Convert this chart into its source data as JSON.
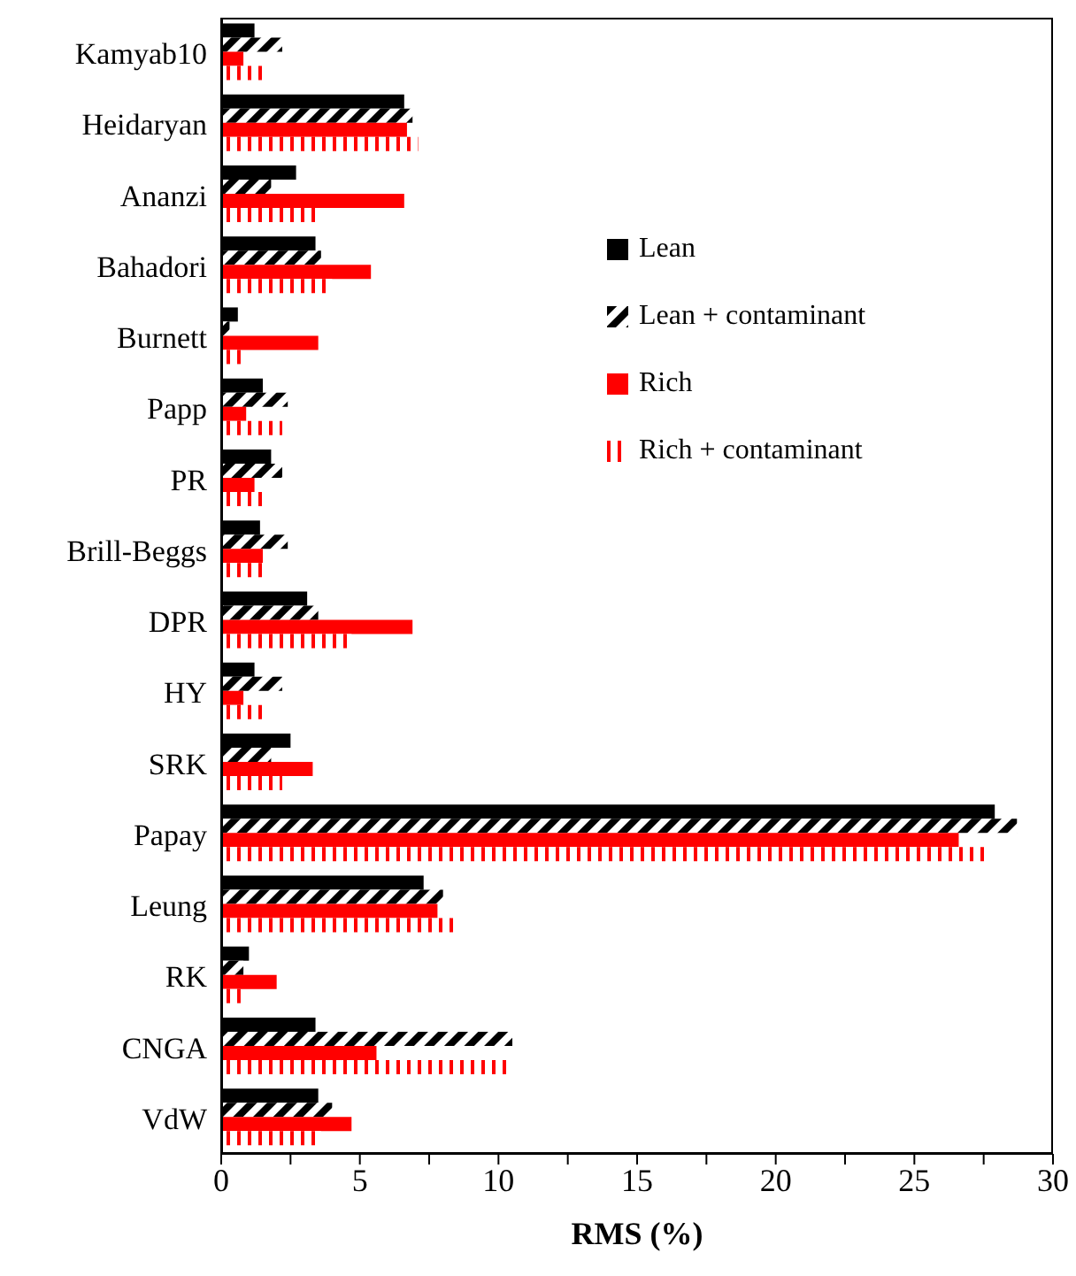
{
  "chart_data": {
    "type": "bar",
    "orientation": "horizontal",
    "xlabel": "RMS (%)",
    "categories": [
      "Kamyab10",
      "Heidaryan",
      "Ananzi",
      "Bahadori",
      "Burnett",
      "Papp",
      "PR",
      "Brill-Beggs",
      "DPR",
      "HY",
      "SRK",
      "Papay",
      "Leung",
      "RK",
      "CNGA",
      "VdW"
    ],
    "series": [
      {
        "name": "Lean",
        "color": "#000000",
        "values": [
          1.2,
          6.6,
          2.7,
          3.4,
          0.6,
          1.5,
          1.8,
          1.4,
          3.1,
          1.2,
          2.5,
          27.9,
          7.3,
          1.0,
          3.4,
          3.5
        ]
      },
      {
        "name": "Lean + contaminant",
        "color": "#000000",
        "values": [
          2.2,
          6.9,
          1.8,
          3.6,
          0.3,
          2.4,
          2.2,
          2.4,
          3.5,
          2.2,
          1.8,
          28.7,
          8.0,
          0.8,
          10.5,
          4.0
        ]
      },
      {
        "name": "Rich",
        "color": "#ff0000",
        "values": [
          0.8,
          6.7,
          6.6,
          5.4,
          3.5,
          0.9,
          1.2,
          1.5,
          6.9,
          0.8,
          3.3,
          26.6,
          7.8,
          2.0,
          5.6,
          4.7
        ]
      },
      {
        "name": "Rich + contaminant",
        "color": "#ff0000",
        "values": [
          1.7,
          7.1,
          3.6,
          4.0,
          0.7,
          2.2,
          1.7,
          1.7,
          4.7,
          1.7,
          2.2,
          27.6,
          8.6,
          0.7,
          10.5,
          3.6
        ]
      }
    ],
    "xlim": [
      0,
      30
    ],
    "xticks": [
      0,
      {
        "value": 2.5,
        "label": null
      },
      5,
      {
        "value": 7.5,
        "label": null
      },
      10,
      {
        "value": 12.5,
        "label": null
      },
      15,
      {
        "value": 17.5,
        "label": null
      },
      20,
      {
        "value": 22.5,
        "label": null
      },
      25,
      {
        "value": 27.5,
        "label": null
      },
      30
    ],
    "grid": false,
    "legend": "top right"
  }
}
